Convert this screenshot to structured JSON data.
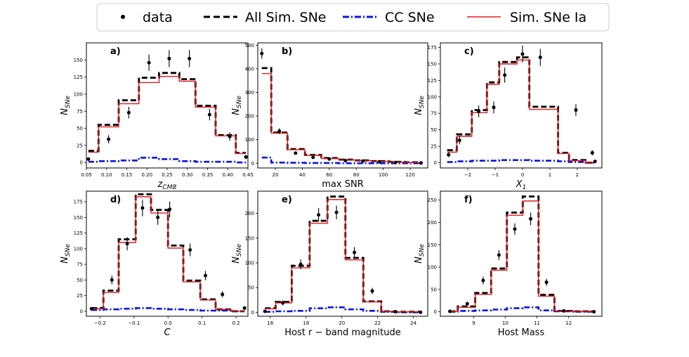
{
  "legend": {
    "data": "data",
    "all_sim": "All Sim. SNe",
    "cc": "CC SNe",
    "ia": "Sim. SNe Ia"
  },
  "colors": {
    "all_sim": "#000000",
    "cc": "#0a14e6",
    "ia": "#e41a1c",
    "data": "#000000"
  },
  "chart_data": [
    {
      "type": "step-histogram",
      "label": "a)",
      "xlabel": "z",
      "xlabel_sub": "CMB",
      "ylabel": "N",
      "ylabel_sub": "SNe",
      "xlim": [
        0.05,
        0.45
      ],
      "ylim": [
        -8,
        175
      ],
      "xticks": [
        0.05,
        0.1,
        0.15,
        0.2,
        0.25,
        0.3,
        0.35,
        0.4,
        0.45
      ],
      "xtick_labels": [
        "0.05",
        "0.10",
        "0.15",
        "0.20",
        "0.25",
        "0.30",
        "0.35",
        "0.40",
        "0.45"
      ],
      "yticks": [
        0,
        25,
        50,
        75,
        100,
        125,
        150
      ],
      "ytick_labels": [
        "0",
        "25",
        "50",
        "75",
        "100",
        "125",
        "150"
      ],
      "edges": [
        0.055,
        0.08,
        0.13,
        0.18,
        0.23,
        0.28,
        0.32,
        0.37,
        0.42,
        0.445
      ],
      "all_sim": [
        17,
        55,
        91,
        124,
        131,
        122,
        83,
        40,
        14
      ],
      "ia": [
        15,
        52,
        86,
        117,
        126,
        119,
        81,
        39,
        13
      ],
      "cc": [
        1,
        2,
        3,
        7,
        5,
        2,
        1,
        1,
        0
      ],
      "data_x": [
        0.055,
        0.105,
        0.155,
        0.205,
        0.255,
        0.305,
        0.355,
        0.405,
        0.445
      ],
      "data_y": [
        5,
        34,
        73,
        146,
        152,
        152,
        70,
        38,
        8
      ],
      "data_err": [
        2.5,
        6,
        8.5,
        12,
        12.5,
        12.5,
        8.5,
        6,
        3
      ]
    },
    {
      "type": "step-histogram",
      "label": "b)",
      "xlabel": "max SNR",
      "xlabel_sub": "",
      "ylabel": "N",
      "ylabel_sub": "SNe",
      "xlim": [
        7,
        133
      ],
      "ylim": [
        -20,
        510
      ],
      "xticks": [
        20,
        40,
        60,
        80,
        100,
        120
      ],
      "xtick_labels": [
        "20",
        "40",
        "60",
        "80",
        "100",
        "120"
      ],
      "yticks": [
        0,
        100,
        200,
        300,
        400,
        500
      ],
      "ytick_labels": [
        "0",
        "100",
        "200",
        "300",
        "400",
        "500"
      ],
      "edges": [
        10,
        17,
        29,
        42,
        54,
        67,
        79,
        91,
        104,
        116,
        129
      ],
      "all_sim": [
        403,
        130,
        60,
        35,
        22,
        15,
        12,
        9,
        6,
        4
      ],
      "ia": [
        380,
        127,
        57,
        33,
        20,
        14,
        11,
        8,
        5,
        3
      ],
      "cc": [
        24,
        3,
        2,
        1,
        1,
        0,
        0,
        0,
        0,
        0
      ],
      "data_x": [
        10,
        23,
        35,
        48,
        60,
        72,
        85,
        97,
        109,
        128
      ],
      "data_y": [
        465,
        136,
        43,
        25,
        18,
        11,
        9,
        6,
        3,
        1
      ],
      "data_err": [
        22,
        12,
        6.5,
        5,
        4,
        3,
        3,
        2.5,
        2,
        1
      ]
    },
    {
      "type": "step-histogram",
      "label": "c)",
      "xlabel": "X",
      "xlabel_sub": "1",
      "ylabel": "N",
      "ylabel_sub": "SNe",
      "xlim": [
        -3.0,
        2.9
      ],
      "ylim": [
        -8,
        182
      ],
      "xticks": [
        -2,
        -1,
        0,
        1,
        2
      ],
      "xtick_labels": [
        "−2",
        "−1",
        "0",
        "1",
        "2"
      ],
      "yticks": [
        0,
        25,
        50,
        75,
        100,
        125,
        150,
        175
      ],
      "ytick_labels": [
        "0",
        "25",
        "50",
        "75",
        "100",
        "125",
        "150",
        "175"
      ],
      "edges": [
        -2.75,
        -2.4,
        -1.85,
        -1.3,
        -0.85,
        -0.2,
        0.25,
        1.3,
        1.7,
        2.3,
        2.65
      ],
      "all_sim": [
        19,
        43,
        80,
        122,
        153,
        160,
        85,
        15,
        4,
        0
      ],
      "ia": [
        16,
        40,
        76,
        119,
        150,
        156,
        81,
        14,
        3,
        0
      ],
      "cc": [
        1,
        2,
        3,
        3,
        4,
        4,
        3,
        2,
        1,
        0
      ],
      "data_x": [
        -2.7,
        -2.3,
        -1.6,
        -1.05,
        -0.65,
        0.0,
        0.65,
        1.95,
        2.55,
        2.65
      ],
      "data_y": [
        12,
        34,
        78,
        84,
        133,
        165,
        160,
        80,
        15,
        2
      ],
      "data_err": [
        3.5,
        6,
        9,
        9,
        11.5,
        13,
        13,
        9,
        4,
        1.5
      ]
    },
    {
      "type": "step-histogram",
      "label": "d)",
      "xlabel": "C",
      "xlabel_sub": "",
      "ylabel": "N",
      "ylabel_sub": "SNe",
      "xlim": [
        -0.24,
        0.235
      ],
      "ylim": [
        -8,
        192
      ],
      "xticks": [
        -0.2,
        -0.1,
        0.0,
        0.1,
        0.2
      ],
      "xtick_labels": [
        "−0.2",
        "−0.1",
        "0.0",
        "0.1",
        "0.2"
      ],
      "yticks": [
        0,
        25,
        50,
        75,
        100,
        125,
        150,
        175
      ],
      "ytick_labels": [
        "0",
        "25",
        "50",
        "75",
        "100",
        "125",
        "150",
        "175"
      ],
      "edges": [
        -0.225,
        -0.19,
        -0.145,
        -0.095,
        -0.05,
        0.0,
        0.045,
        0.095,
        0.14,
        0.185,
        0.225
      ],
      "all_sim": [
        5,
        33,
        115,
        187,
        162,
        105,
        49,
        19,
        3,
        0
      ],
      "ia": [
        4,
        30,
        110,
        183,
        157,
        101,
        47,
        18,
        3,
        0
      ],
      "cc": [
        2,
        3,
        4,
        5,
        4,
        3,
        2,
        1,
        1,
        0
      ],
      "data_x": [
        -0.225,
        -0.165,
        -0.12,
        -0.075,
        -0.03,
        0.005,
        0.065,
        0.11,
        0.16,
        0.225
      ],
      "data_y": [
        4,
        50,
        108,
        165,
        150,
        163,
        98,
        57,
        27,
        5
      ],
      "data_err": [
        2,
        7,
        10.5,
        13,
        12,
        12.5,
        10,
        7.5,
        5,
        2
      ]
    },
    {
      "type": "step-histogram",
      "label": "e)",
      "xlabel": "Host r − band magnitude",
      "xlabel_sub": "",
      "ylabel": "N",
      "ylabel_sub": "SNe",
      "xlim": [
        15.3,
        24.8
      ],
      "ylim": [
        -8,
        245
      ],
      "xticks": [
        16,
        18,
        20,
        22,
        24
      ],
      "xtick_labels": [
        "16",
        "18",
        "20",
        "22",
        "24"
      ],
      "yticks": [
        0,
        50,
        100,
        150,
        200
      ],
      "ytick_labels": [
        "0",
        "50",
        "100",
        "150",
        "200"
      ],
      "edges": [
        15.7,
        16.3,
        17.2,
        18.2,
        19.2,
        20.2,
        21.2,
        22.2,
        23.0,
        24.4
      ],
      "all_sim": [
        8,
        21,
        94,
        185,
        234,
        110,
        22,
        2,
        1
      ],
      "ia": [
        7,
        19,
        90,
        180,
        228,
        106,
        21,
        2,
        1
      ],
      "cc": [
        1,
        2,
        3,
        8,
        10,
        6,
        3,
        1,
        0
      ],
      "data_x": [
        15.7,
        16.7,
        17.7,
        18.7,
        19.7,
        20.7,
        21.7,
        23.0,
        24.4
      ],
      "data_y": [
        2,
        19,
        97,
        197,
        202,
        121,
        43,
        1,
        0
      ],
      "data_err": [
        1.5,
        5,
        10,
        14,
        14,
        11,
        6.5,
        1,
        0.5
      ]
    },
    {
      "type": "step-histogram",
      "label": "f)",
      "xlabel": "Host Mass",
      "xlabel_sub": "",
      "ylabel": "N",
      "ylabel_sub": "SNe",
      "xlim": [
        7.95,
        13.05
      ],
      "ylim": [
        -10,
        270
      ],
      "xticks": [
        9,
        10,
        11,
        12
      ],
      "xtick_labels": [
        "9",
        "10",
        "11",
        "12"
      ],
      "yticks": [
        0,
        50,
        100,
        150,
        200,
        250
      ],
      "ytick_labels": [
        "0",
        "50",
        "100",
        "150",
        "200",
        "250"
      ],
      "edges": [
        8.25,
        8.5,
        9.05,
        9.55,
        10.05,
        10.55,
        11.05,
        11.55,
        12.1,
        12.8
      ],
      "all_sim": [
        1,
        12,
        42,
        97,
        222,
        258,
        38,
        2,
        1
      ],
      "ia": [
        1,
        10,
        39,
        93,
        216,
        248,
        35,
        2,
        1
      ],
      "cc": [
        0,
        2,
        3,
        5,
        8,
        10,
        3,
        1,
        0
      ],
      "data_x": [
        8.25,
        8.8,
        9.3,
        9.8,
        10.3,
        10.8,
        11.3,
        11.85,
        12.8
      ],
      "data_y": [
        1,
        18,
        70,
        127,
        185,
        208,
        66,
        2,
        0
      ],
      "data_err": [
        1,
        4,
        8.5,
        11,
        13,
        14,
        8,
        1.5,
        0.5
      ]
    }
  ]
}
